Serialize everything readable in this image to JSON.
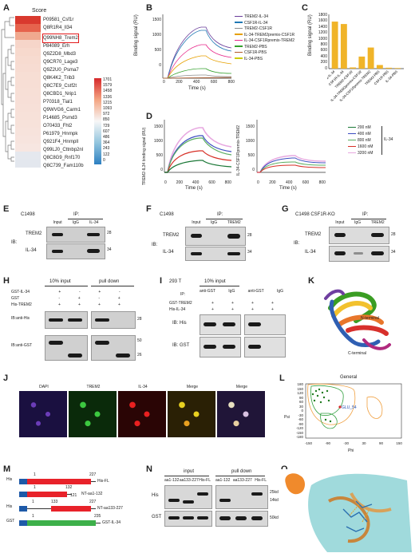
{
  "panels": {
    "A": "A",
    "B": "B",
    "C": "C",
    "D": "D",
    "E": "E",
    "F": "F",
    "G": "G",
    "H": "H",
    "I": "I",
    "J": "J",
    "K": "K",
    "L": "L",
    "M": "M",
    "N": "N",
    "O": "O"
  },
  "heatmap": {
    "title": "Score",
    "genes": [
      "P09581_Csf1r",
      "Q8R1R4_Il34",
      "Q99NH8_Trem2",
      "P84089_Erh",
      "Q9Z2D8_Mbd3",
      "Q9CR70_Lage3",
      "Q9Z2U0_Psma7",
      "Q8K4K2_Trib3",
      "Q8C7E9_Cstf2t",
      "Q8CBD1_Nrip1",
      "P70318_Tial1",
      "Q9WVG6_Carm1",
      "P14685_Psmd3",
      "O70433_Fhl2",
      "P61979_Hnrnpk",
      "Q921F4_Hnrnpll",
      "Q99LJ0_Cttnbp2nl",
      "Q8C8G9_Rnf170",
      "Q8C739_Fam110b"
    ],
    "highlight": "Q99NH8_Trem2",
    "scale": [
      "1701",
      "1579",
      "1458",
      "1336",
      "1215",
      "1093",
      "972",
      "850",
      "729",
      "607",
      "486",
      "364",
      "243",
      "122",
      "0"
    ],
    "colors": {
      "high": "#d6282b",
      "mid": "#f7f7f7",
      "low": "#2c7fc1",
      "highlight": "#e31a1c"
    }
  },
  "panel_b": {
    "ylabel": "Binding signal (RU)",
    "xlabel": "Time (s)",
    "yticks": [
      "1500",
      "1000",
      "500",
      "0"
    ],
    "xticks": [
      "0",
      "200",
      "400",
      "600",
      "800"
    ],
    "legend": [
      {
        "label": "TREM2-IL-34",
        "color": "#6a3d9a"
      },
      {
        "label": "CSF1R-IL-34",
        "color": "#1f78b4"
      },
      {
        "label": "TREM2-CSF1R",
        "color": "#8c8c8c"
      },
      {
        "label": "IL-34-TREM2premix-CSF1R",
        "color": "#e6a000"
      },
      {
        "label": "IL-34-CSF1Rpremix-TREM2",
        "color": "#e7298a"
      },
      {
        "label": "TREM2-PBS",
        "color": "#33a02c"
      },
      {
        "label": "CSF1R-PBS",
        "color": "#b15928"
      },
      {
        "label": "IL-34-PBS",
        "color": "#cccc00"
      }
    ]
  },
  "chart_data": [
    {
      "type": "bar",
      "title": "",
      "ylabel": "Binding signal (RU)",
      "ylim": [
        0,
        1800
      ],
      "categories": [
        "TREM2-IL-34",
        "CSF1R-IL-34",
        "TREM2-CSF1R",
        "IL-34-TREM2premix-CSF1R",
        "IL-34-CSF1Rpremix-TREM2",
        "TREM2-PBS",
        "CSF1R-PBS",
        "IL-34-PBS"
      ],
      "values": [
        1560,
        1480,
        40,
        400,
        700,
        120,
        30,
        20
      ],
      "color": "#f0b429"
    }
  ],
  "panel_c": {
    "yticks": [
      "1800",
      "1600",
      "1400",
      "1200",
      "1000",
      "800",
      "600",
      "400",
      "200",
      "0"
    ]
  },
  "panel_d": {
    "ylabel_left": "TREM2-IL34 binding signal (RU)",
    "ylabel_right": "IL-34-CSF1Rpremix-TREM2",
    "xlabel": "Time (s)",
    "yticks": [
      "1500",
      "1000",
      "500",
      "0"
    ],
    "xticks": [
      "0",
      "200",
      "400",
      "600",
      "800"
    ],
    "legend": [
      {
        "label": "200 nM",
        "color": "#1b7837"
      },
      {
        "label": "400 nM",
        "color": "#3b4cc0"
      },
      {
        "label": "800 nM",
        "color": "#5aae61"
      },
      {
        "label": "1600 nM",
        "color": "#d73027"
      },
      {
        "label": "3200 nM",
        "color": "#e7a8e0"
      }
    ],
    "group": "IL-34"
  },
  "panel_e": {
    "cell": "C1498",
    "ip": "IP:",
    "cols": [
      "Input",
      "IgG",
      "IL-34"
    ],
    "rows": [
      "TREM2",
      "IL-34"
    ],
    "ib": "IB:",
    "mw": [
      "28",
      "34"
    ]
  },
  "panel_f": {
    "cell": "C1498",
    "ip": "IP:",
    "cols": [
      "Input",
      "IgG",
      "TREM2"
    ],
    "rows": [
      "TREM2",
      "IL-34"
    ],
    "ib": "IB:",
    "mw": [
      "28",
      "34"
    ]
  },
  "panel_g": {
    "cell": "C1498 CSF1R-KO",
    "ip": "IP:",
    "cols": [
      "Input",
      "IgG",
      "TREM2"
    ],
    "rows": [
      "TREM2",
      "IL-34"
    ],
    "ib": "IB:",
    "mw": [
      "28",
      "34"
    ]
  },
  "panel_h": {
    "input": "10% input",
    "pulldown": "pull down",
    "rows": [
      "GST-IL-34",
      "GST",
      "His-TREM2"
    ],
    "signs": [
      [
        "+",
        "-",
        "+",
        "-"
      ],
      [
        "-",
        "+",
        "-",
        "+"
      ],
      [
        "+",
        "+",
        "+",
        "+"
      ]
    ],
    "blots": [
      "IB:anti-His",
      "IB:anti-GST"
    ],
    "mw": [
      "28",
      "50",
      "26"
    ]
  },
  "panel_i": {
    "cell": "293 T",
    "input": "10% input",
    "ip": "IP:",
    "ipcols": [
      "anti-GST",
      "IgG",
      "anti-GST",
      "IgG"
    ],
    "rows": [
      "GST-TREM2",
      "His-IL-34"
    ],
    "blots": [
      "IB: His",
      "IB: GST"
    ]
  },
  "panel_j": {
    "channels": [
      "DAPI",
      "TREM2",
      "IL-34",
      "Merge",
      "Merge"
    ]
  },
  "panel_k": {
    "n": "N-terminal",
    "c": "C-terminal"
  },
  "panel_l": {
    "title": "General",
    "ylabel": "Psi",
    "xlabel": "Phi",
    "point": "GLU_54",
    "yticks": [
      "180",
      "150",
      "120",
      "90",
      "60",
      "30",
      "0",
      "-30",
      "-60",
      "-90",
      "-120",
      "-150",
      "-180"
    ],
    "xticks": [
      "-150",
      "-90",
      "-30",
      "30",
      "90",
      "150"
    ]
  },
  "panel_m": {
    "constructs": [
      {
        "tag": "His",
        "start": "1",
        "end": "227",
        "name": "His-FL"
      },
      {
        "tag": "His",
        "start": "1",
        "end": "132",
        "name": "NT-aa1-132"
      },
      {
        "tag": "His",
        "start": "133",
        "end": "227",
        "name": "NT-aa133-227"
      },
      {
        "tag": "GST",
        "start": "1",
        "end": "235",
        "name": "GST-IL-34"
      }
    ],
    "mid": "121"
  },
  "panel_n": {
    "input": "input",
    "pulldown": "pull down",
    "cols": [
      "aa1-132",
      "aa133-227",
      "His-FL"
    ],
    "rows": [
      "His",
      "GST"
    ],
    "mw": [
      "25kd",
      "14kd",
      "50kd"
    ]
  }
}
